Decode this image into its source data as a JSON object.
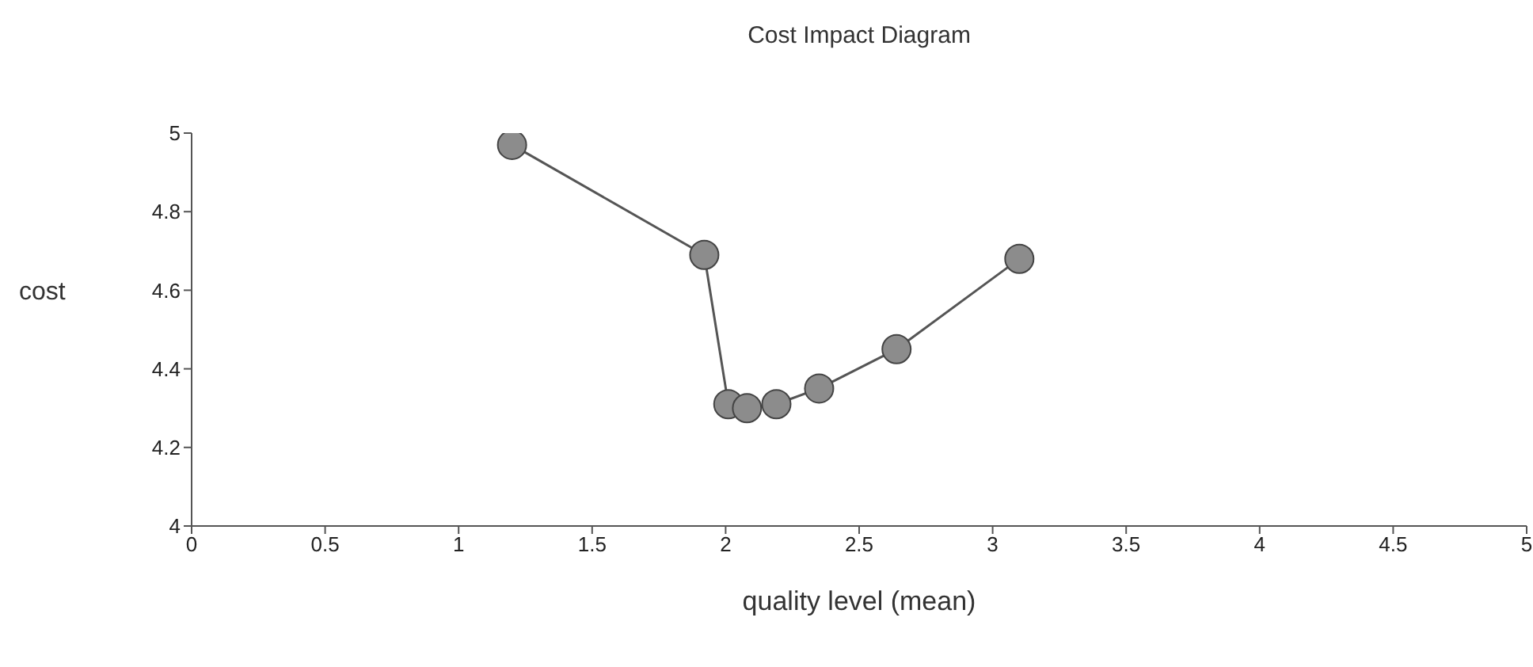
{
  "chart_data": {
    "type": "line",
    "title": "Cost Impact Diagram",
    "xlabel": "quality level (mean)",
    "ylabel": "cost",
    "x": [
      1.2,
      1.92,
      2.01,
      2.08,
      2.19,
      2.35,
      2.64,
      3.1
    ],
    "series": [
      {
        "color": "#8c8c8c",
        "values": [
          4.97,
          4.69,
          4.31,
          4.3,
          4.31,
          4.35,
          4.45,
          4.68
        ]
      }
    ],
    "xlim": [
      0,
      5
    ],
    "xticks": [
      0,
      0.5,
      1,
      1.5,
      2,
      2.5,
      3,
      3.5,
      4,
      4.5,
      5
    ],
    "ylim": [
      4,
      5
    ],
    "yticks": [
      4,
      4.2,
      4.4,
      4.6,
      4.8,
      5
    ],
    "grid": false,
    "legend": false,
    "marker": "circle",
    "line_style": "solid"
  }
}
